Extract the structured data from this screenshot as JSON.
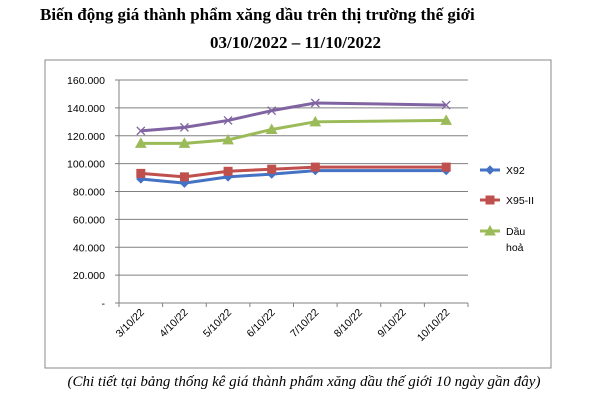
{
  "title_line1": "Biến động giá thành phẩm xăng dầu trên thị trường thế giới",
  "title_line2": "03/10/2022 – 11/10/2022",
  "caption": "(Chi tiết tại bảng thống kê giá thành phẩm xăng dầu thế giới 10 ngày gần đây)",
  "chart_data": {
    "type": "line",
    "categories": [
      "3/10/22",
      "4/10/22",
      "5/10/22",
      "6/10/22",
      "7/10/22",
      "8/10/22",
      "9/10/22",
      "10/10/22"
    ],
    "y_tick_labels": [
      "-",
      "20.000",
      "40.000",
      "60.000",
      "80.000",
      "100.000",
      "120.000",
      "140.000",
      "160.000"
    ],
    "ylim": [
      0,
      160000
    ],
    "grid": true,
    "legend_position": "right",
    "series": [
      {
        "name": "X92",
        "color": "#4472C4",
        "marker": "diamond",
        "in_legend": true,
        "x": [
          0,
          1,
          2,
          3,
          4,
          7
        ],
        "values": [
          89000,
          86000,
          90500,
          92500,
          95000,
          95000
        ]
      },
      {
        "name": "X95-II",
        "color": "#C0504D",
        "marker": "square",
        "in_legend": true,
        "x": [
          0,
          1,
          2,
          3,
          4,
          7
        ],
        "values": [
          93000,
          90500,
          94500,
          96000,
          97500,
          97500
        ]
      },
      {
        "name": "Dầu hoả",
        "legend_lines": [
          "Dầu",
          "hoả"
        ],
        "color": "#9BBB59",
        "marker": "triangle",
        "in_legend": true,
        "x": [
          0,
          1,
          2,
          3,
          4,
          7
        ],
        "values": [
          114500,
          114500,
          117000,
          124500,
          130000,
          131000
        ]
      },
      {
        "name": "",
        "color": "#8064A2",
        "marker": "x",
        "in_legend": false,
        "x": [
          0,
          1,
          2,
          3,
          4,
          7
        ],
        "values": [
          123500,
          126000,
          131000,
          138000,
          143500,
          142000
        ]
      }
    ]
  }
}
